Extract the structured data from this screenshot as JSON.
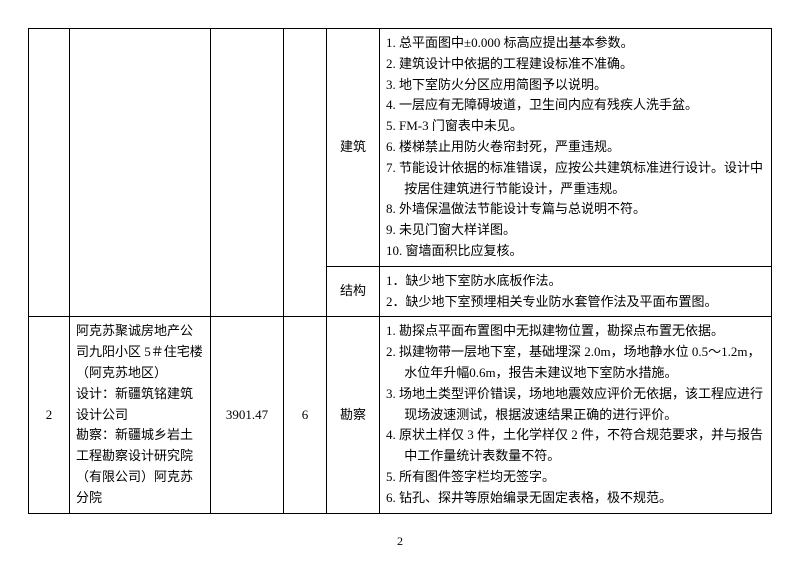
{
  "page_number": "2",
  "rows": [
    {
      "idx": "",
      "project": "",
      "area": "",
      "floor": "",
      "cells": [
        {
          "discipline": "建筑",
          "issues": [
            "1. 总平面图中±0.000 标高应提出基本参数。",
            "2. 建筑设计中依据的工程建设标准不准确。",
            "3. 地下室防火分区应用简图予以说明。",
            "4. 一层应有无障碍坡道，卫生间内应有残疾人洗手盆。",
            "5. FM-3 门窗表中未见。",
            "6. 楼梯禁止用防火卷帘封死，严重违规。",
            "7. 节能设计依据的标准错误，应按公共建筑标准进行设计。设计中按居住建筑进行节能设计，严重违规。",
            "8. 外墙保温做法节能设计专篇与总说明不符。",
            "9. 未见门窗大样详图。",
            "10. 窗墙面积比应复核。"
          ]
        },
        {
          "discipline": "结构",
          "issues": [
            "1．缺少地下室防水底板作法。",
            "2．缺少地下室预埋相关专业防水套管作法及平面布置图。"
          ]
        }
      ]
    },
    {
      "idx": "2",
      "project": "阿克苏聚诚房地产公司九阳小区 5＃住宅楼（阿克苏地区）\n设计：新疆筑铭建筑设计公司\n勘察：新疆城乡岩土工程勘察设计研究院（有限公司）阿克苏分院",
      "area": "3901.47",
      "floor": "6",
      "cells": [
        {
          "discipline": "勘察",
          "issues": [
            "1. 勘探点平面布置图中无拟建物位置，勘探点布置无依据。",
            "2. 拟建物带一层地下室，基础埋深 2.0m，场地静水位 0.5～1.2m，水位年升幅0.6m，报告未建议地下室防水措施。",
            "3. 场地土类型评价错误，场地地震效应评价无依据，该工程应进行现场波速测试，根据波速结果正确的进行评价。",
            "4. 原状土样仅 3 件，土化学样仅 2 件，不符合规范要求，并与报告中工作量统计表数量不符。",
            "5. 所有图件签字栏均无签字。",
            "6. 钻孔、探井等原始编录无固定表格，极不规范。"
          ]
        }
      ]
    }
  ]
}
